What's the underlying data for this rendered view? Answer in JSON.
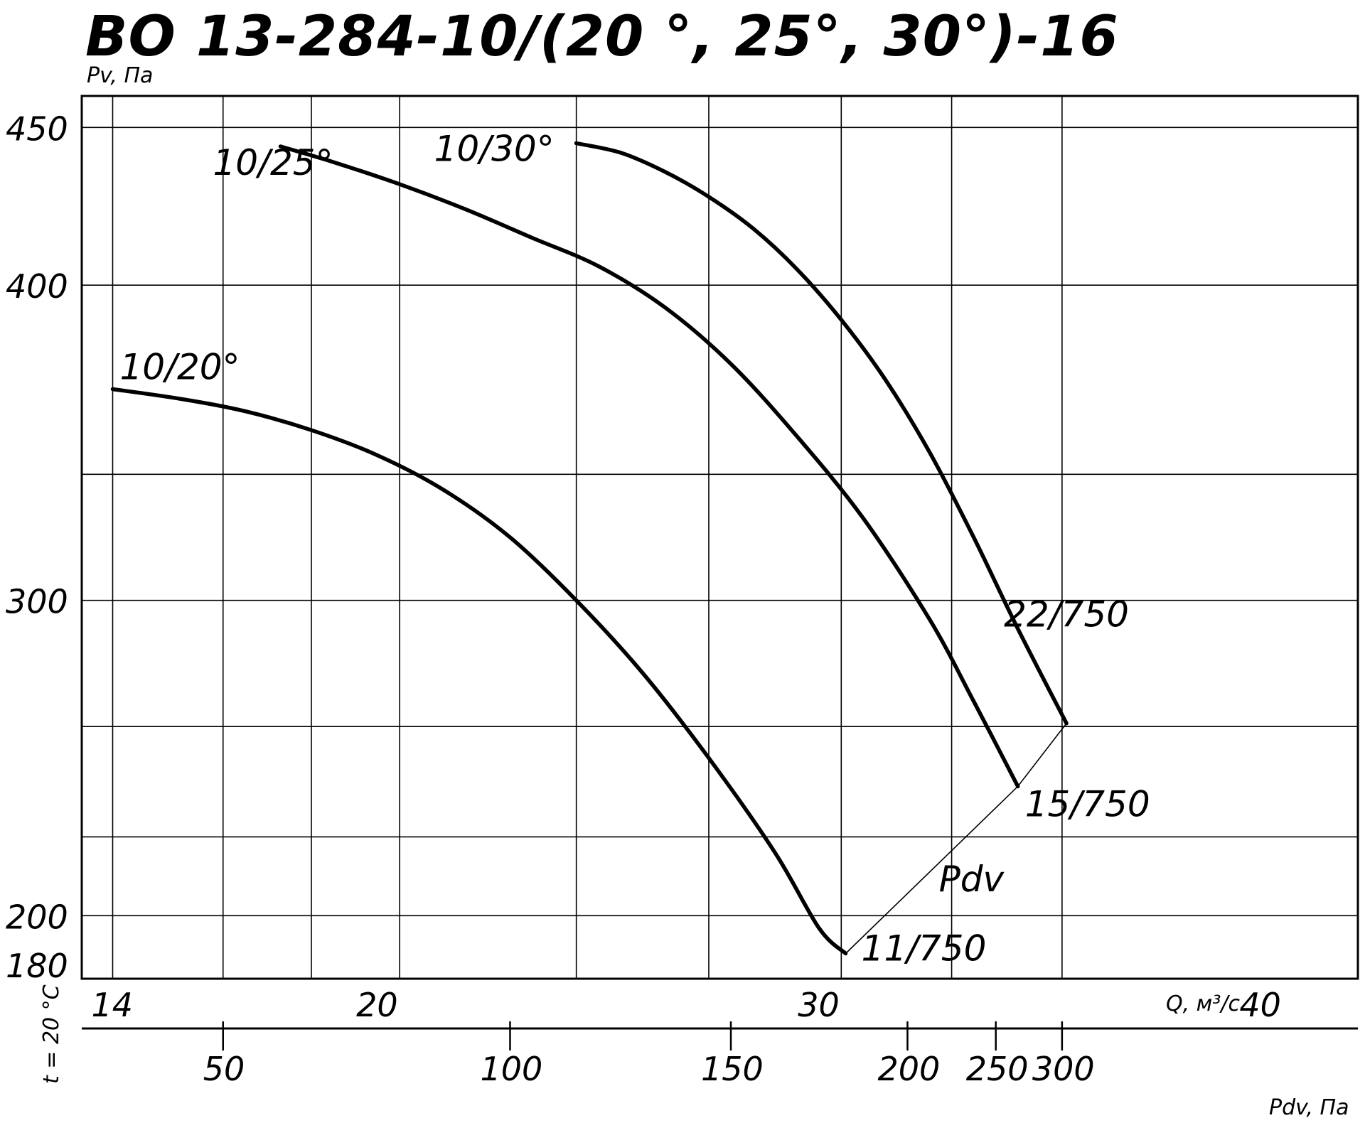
{
  "chart_data": {
    "type": "line",
    "title": "ВО 13-284-10/(20 °, 25°, 30°)-16",
    "ylabel": "Pv, Па",
    "xlabel": "Q, м³/с",
    "x2label": "Pdv, Па",
    "side_note": "t = 20 °C",
    "ylim": [
      180,
      460
    ],
    "xlim": [
      13.3,
      42.2
    ],
    "y_ticks": [
      {
        "value": 450,
        "label": "450"
      },
      {
        "value": 400,
        "label": "400"
      },
      {
        "value": 300,
        "label": "300"
      },
      {
        "value": 200,
        "label": "200"
      },
      {
        "value": 180,
        "label": "180"
      }
    ],
    "y_grid": [
      200,
      225,
      260,
      300,
      340,
      400,
      450
    ],
    "x_ticks": [
      {
        "value": 14,
        "label": "14"
      },
      {
        "value": 20,
        "label": "20"
      },
      {
        "value": 30,
        "label": "30"
      },
      {
        "value": 40,
        "label": "40"
      }
    ],
    "x_grid": [
      14,
      16.5,
      18.5,
      20.5,
      24.5,
      27.5,
      30.5,
      33,
      35.5
    ],
    "pdv_ticks": [
      {
        "q": 16.5,
        "label": "50"
      },
      {
        "q": 23,
        "label": "100"
      },
      {
        "q": 28,
        "label": "150"
      },
      {
        "q": 32,
        "label": "200"
      },
      {
        "q": 34,
        "label": "250"
      },
      {
        "q": 35.5,
        "label": "300"
      }
    ],
    "series": [
      {
        "name": "10/20°",
        "points": [
          [
            14.0,
            367
          ],
          [
            15.5,
            364
          ],
          [
            17.0,
            360
          ],
          [
            18.5,
            354
          ],
          [
            20.0,
            346
          ],
          [
            21.5,
            335
          ],
          [
            23.0,
            320
          ],
          [
            24.5,
            300
          ],
          [
            26.0,
            277
          ],
          [
            27.5,
            250
          ],
          [
            29.0,
            220
          ],
          [
            30.0,
            196
          ],
          [
            30.6,
            188
          ]
        ]
      },
      {
        "name": "10/25°",
        "points": [
          [
            17.8,
            444
          ],
          [
            19.0,
            439
          ],
          [
            20.5,
            432
          ],
          [
            22.0,
            424
          ],
          [
            23.5,
            415
          ],
          [
            25.0,
            406
          ],
          [
            26.5,
            393
          ],
          [
            28.0,
            375
          ],
          [
            29.5,
            352
          ],
          [
            31.0,
            326
          ],
          [
            32.5,
            294
          ],
          [
            33.5,
            268
          ],
          [
            34.5,
            241
          ]
        ]
      },
      {
        "name": "10/30°",
        "points": [
          [
            24.5,
            445
          ],
          [
            25.5,
            442
          ],
          [
            26.5,
            436
          ],
          [
            27.5,
            428
          ],
          [
            28.5,
            418
          ],
          [
            29.5,
            405
          ],
          [
            30.5,
            389
          ],
          [
            31.5,
            370
          ],
          [
            32.5,
            347
          ],
          [
            33.5,
            320
          ],
          [
            34.5,
            291
          ],
          [
            35.6,
            261
          ]
        ]
      }
    ],
    "endpoint_labels": [
      {
        "series": "10/20°",
        "text": "11/750"
      },
      {
        "series": "10/25°",
        "text": "15/750"
      },
      {
        "series": "10/30°",
        "text": "22/750"
      }
    ],
    "pdv_line_label": "Pdv",
    "grid": true,
    "legend": "none"
  }
}
